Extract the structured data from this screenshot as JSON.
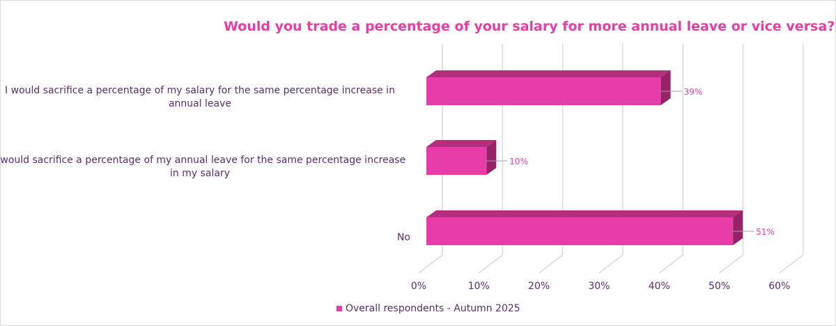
{
  "chart_data": {
    "type": "bar",
    "orientation": "horizontal",
    "style": "3d",
    "title": "Would you trade a percentage of your salary for more annual leave or vice versa?",
    "categories": [
      "I would sacrifice a percentage of my salary for the same percentage increase in annual leave",
      "I would sacrifice a percentage of my annual leave for the same percentage increase in my salary",
      "No"
    ],
    "series": [
      {
        "name": "Overall respondents - Autumn 2025",
        "values": [
          39,
          10,
          51
        ]
      }
    ],
    "data_labels": [
      "39%",
      "10%",
      "51%"
    ],
    "xlim": [
      0,
      60
    ],
    "x_ticks": [
      "0%",
      "10%",
      "20%",
      "30%",
      "40%",
      "50%",
      "60%"
    ],
    "grid": true,
    "legend": "bottom",
    "colors": {
      "bar": "#e83da8",
      "bar_top": "#b52d7d",
      "bar_side": "#962268",
      "text": "#5a2d6e",
      "title": "#e83da8",
      "label": "#e83da8"
    }
  }
}
